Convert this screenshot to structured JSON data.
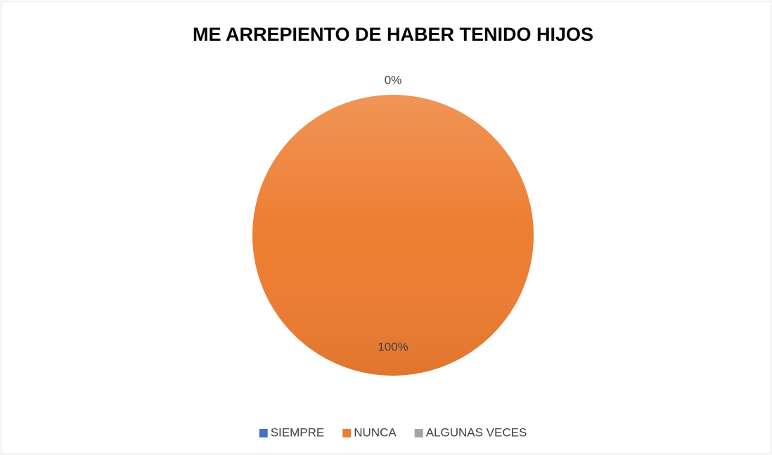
{
  "chart_data": {
    "type": "pie",
    "title": "ME ARREPIENTO DE HABER TENIDO HIJOS",
    "categories": [
      "SIEMPRE",
      "NUNCA",
      "ALGUNAS VECES"
    ],
    "values": [
      0,
      100,
      0
    ],
    "value_labels": [
      "0%",
      "100%",
      null
    ],
    "colors": [
      "#4472c4",
      "#ed7d31",
      "#a5a5a5"
    ],
    "legend": "bottom"
  }
}
